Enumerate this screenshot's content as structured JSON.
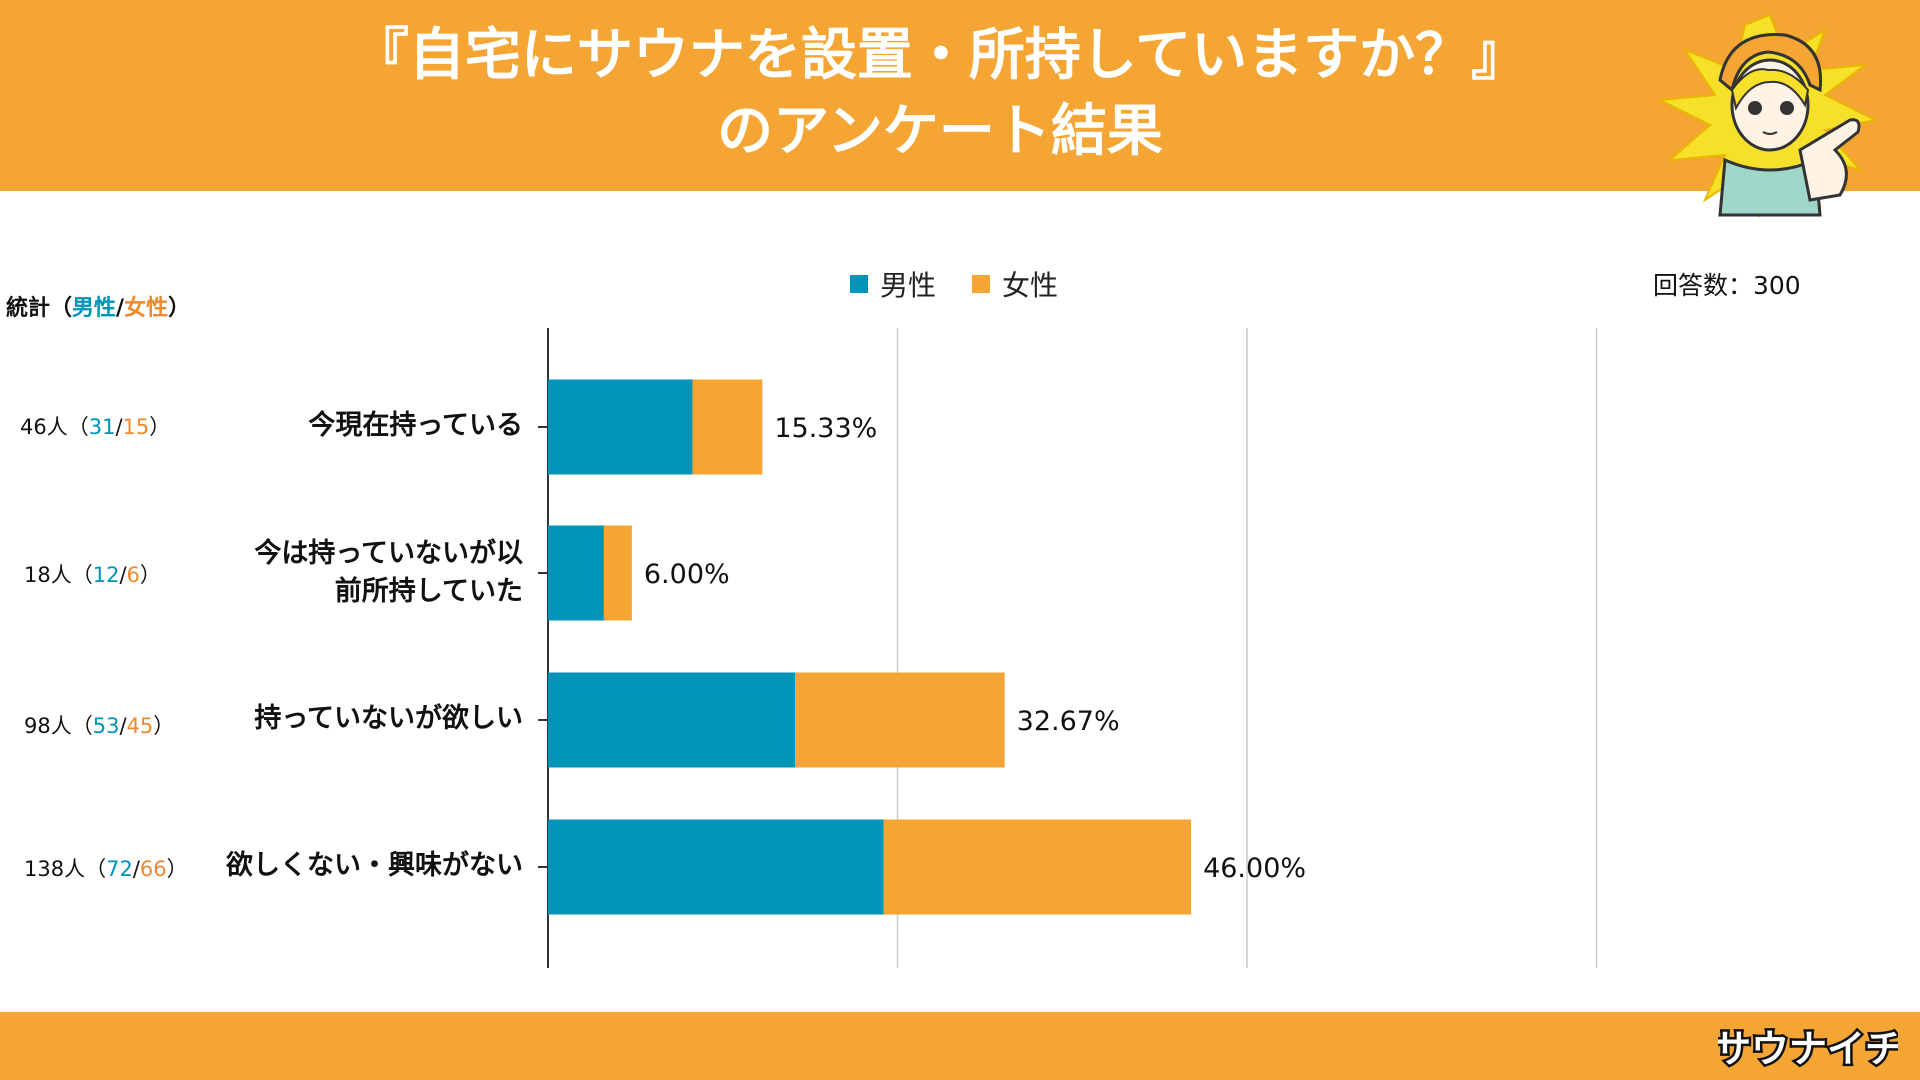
{
  "header": {
    "title_line1": "『自宅にサウナを設置・所持していますか？』",
    "title_line2": "のアンケート結果"
  },
  "logo_text": "サウナイチ",
  "legend": {
    "male": "男性",
    "female": "女性"
  },
  "respondents": "回答数：300",
  "stat_header": {
    "prefix": "統計（",
    "male": "男性",
    "sep": "/",
    "female": "女性",
    "suffix": "）"
  },
  "colors": {
    "male": "#0094B8",
    "female": "#F4A533",
    "orange_bg": "#F4A533",
    "grid": "#cccccc"
  },
  "chart_data": {
    "type": "bar",
    "orientation": "horizontal",
    "stacked": true,
    "title": "『自宅にサウナを設置・所持していますか？』のアンケート結果",
    "categories": [
      "今現在持っている",
      "今は持っていないが以前所持していた",
      "持っていないが欲しい",
      "欲しくない・興味がない"
    ],
    "category_lines": [
      [
        "今現在持っている"
      ],
      [
        "今は持っていないが以",
        "前所持していた"
      ],
      [
        "持っていないが欲しい"
      ],
      [
        "欲しくない・興味がない"
      ]
    ],
    "series": [
      {
        "name": "男性",
        "values": [
          31,
          12,
          53,
          72
        ]
      },
      {
        "name": "女性",
        "values": [
          15,
          6,
          45,
          66
        ]
      }
    ],
    "totals": [
      46,
      18,
      98,
      138
    ],
    "percent_labels": [
      "15.33%",
      "6.00%",
      "32.67%",
      "46.00%"
    ],
    "stat_labels": [
      {
        "total": "46人（",
        "male": "31",
        "sep": "/",
        "female": "15",
        "end": "）"
      },
      {
        "total": "18人（",
        "male": "12",
        "sep": "/",
        "female": "6",
        "end": "）"
      },
      {
        "total": "98人（",
        "male": "53",
        "sep": "/",
        "female": "45",
        "end": "）"
      },
      {
        "total": "138人（",
        "male": "72",
        "sep": "/",
        "female": "66",
        "end": "）"
      }
    ],
    "xlim": [
      0,
      300
    ],
    "grid_ticks": [
      0,
      75,
      150,
      225
    ],
    "grid": true,
    "legend_position": "top"
  }
}
